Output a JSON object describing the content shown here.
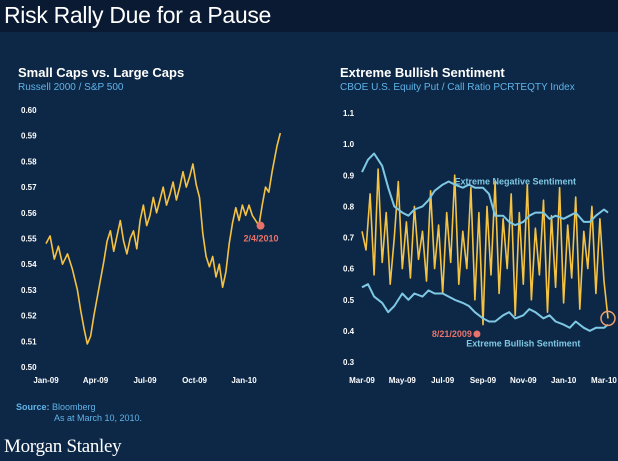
{
  "header": {
    "title": "Risk Rally Due for a Pause"
  },
  "chart_data": [
    {
      "type": "line",
      "title": "Small Caps vs. Large Caps",
      "subtitle": "Russell 2000 / S&P 500",
      "x_tick_labels": [
        "Jan-09",
        "Apr-09",
        "Jul-09",
        "Oct-09",
        "Jan-10"
      ],
      "ylim": [
        0.5,
        0.6
      ],
      "y_tick_labels": [
        "0.60",
        "0.59",
        "0.58",
        "0.57",
        "0.56",
        "0.55",
        "0.54",
        "0.53",
        "0.52",
        "0.51",
        "0.50"
      ],
      "series": [
        {
          "name": "Russell 2000 / S&P 500",
          "color": "#f5c242",
          "x_months": [
            0,
            0.25,
            0.5,
            0.75,
            1.0,
            1.3,
            1.6,
            1.9,
            2.1,
            2.3,
            2.5,
            2.7,
            2.9,
            3.1,
            3.3,
            3.5,
            3.7,
            3.9,
            4.1,
            4.3,
            4.5,
            4.7,
            4.9,
            5.1,
            5.3,
            5.5,
            5.7,
            5.9,
            6.1,
            6.3,
            6.5,
            6.7,
            6.9,
            7.1,
            7.3,
            7.5,
            7.7,
            7.9,
            8.1,
            8.3,
            8.5,
            8.7,
            8.9,
            9.1,
            9.3,
            9.5,
            9.7,
            9.9,
            10.1,
            10.3,
            10.5,
            10.7,
            10.9,
            11.1,
            11.3,
            11.5,
            11.7,
            11.9,
            12.1,
            12.3,
            12.5,
            12.7,
            12.9,
            13.1,
            13.3,
            13.5,
            13.7,
            14.0,
            14.2
          ],
          "values": [
            0.548,
            0.551,
            0.542,
            0.547,
            0.54,
            0.544,
            0.538,
            0.53,
            0.522,
            0.515,
            0.509,
            0.512,
            0.52,
            0.527,
            0.534,
            0.541,
            0.549,
            0.553,
            0.545,
            0.551,
            0.557,
            0.549,
            0.544,
            0.55,
            0.553,
            0.546,
            0.557,
            0.563,
            0.555,
            0.559,
            0.566,
            0.56,
            0.565,
            0.57,
            0.563,
            0.567,
            0.572,
            0.565,
            0.57,
            0.576,
            0.57,
            0.574,
            0.579,
            0.571,
            0.566,
            0.552,
            0.543,
            0.539,
            0.543,
            0.535,
            0.54,
            0.531,
            0.537,
            0.548,
            0.556,
            0.562,
            0.557,
            0.563,
            0.559,
            0.563,
            0.559,
            0.557,
            0.555,
            0.563,
            0.57,
            0.568,
            0.576,
            0.586,
            0.591
          ]
        }
      ],
      "annotations": [
        {
          "label": "2/4/2010",
          "x_month": 13.0,
          "value": 0.555
        }
      ]
    },
    {
      "type": "line",
      "title": "Extreme Bullish Sentiment",
      "subtitle": "CBOE U.S. Equity Put / Call Ratio PCRTEQTY Index",
      "x_tick_labels": [
        "Mar-09",
        "May-09",
        "Jul-09",
        "Sep-09",
        "Nov-09",
        "Jan-10",
        "Mar-10"
      ],
      "ylim": [
        0.3,
        1.1
      ],
      "y_tick_labels": [
        "1.1",
        "1.0",
        "0.9",
        "0.8",
        "0.7",
        "0.6",
        "0.5",
        "0.4",
        "0.3"
      ],
      "series": [
        {
          "name": "Put / Call Ratio",
          "color": "#f5c242",
          "x_months": [
            0,
            0.2,
            0.4,
            0.6,
            0.8,
            1.0,
            1.2,
            1.4,
            1.6,
            1.8,
            2.0,
            2.2,
            2.4,
            2.6,
            2.8,
            3.0,
            3.2,
            3.4,
            3.6,
            3.8,
            4.0,
            4.2,
            4.4,
            4.6,
            4.8,
            5.0,
            5.2,
            5.4,
            5.6,
            5.8,
            6.0,
            6.2,
            6.4,
            6.6,
            6.8,
            7.0,
            7.2,
            7.4,
            7.6,
            7.8,
            8.0,
            8.2,
            8.4,
            8.6,
            8.8,
            9.0,
            9.2,
            9.4,
            9.6,
            9.8,
            10.0,
            10.2,
            10.4,
            10.6,
            10.8,
            11.0,
            11.2,
            11.4,
            11.6,
            11.8,
            12.0,
            12.2
          ],
          "values": [
            0.72,
            0.66,
            0.84,
            0.58,
            0.92,
            0.62,
            0.78,
            0.55,
            0.7,
            0.88,
            0.6,
            0.75,
            0.57,
            0.8,
            0.63,
            0.72,
            0.56,
            0.85,
            0.6,
            0.74,
            0.52,
            0.78,
            0.62,
            0.9,
            0.55,
            0.72,
            0.6,
            0.86,
            0.5,
            0.78,
            0.42,
            0.8,
            0.58,
            0.88,
            0.52,
            0.76,
            0.6,
            0.84,
            0.45,
            0.78,
            0.55,
            0.87,
            0.5,
            0.73,
            0.58,
            0.82,
            0.46,
            0.77,
            0.54,
            0.86,
            0.49,
            0.74,
            0.57,
            0.83,
            0.47,
            0.72,
            0.6,
            0.8,
            0.52,
            0.76,
            0.56,
            0.44
          ]
        },
        {
          "name": "Extreme Negative Sentiment",
          "color": "#7ec8e3",
          "x_months": [
            0,
            0.3,
            0.6,
            1.0,
            1.3,
            1.6,
            2.0,
            2.3,
            2.6,
            3.0,
            3.3,
            3.6,
            4.0,
            4.3,
            4.6,
            5.0,
            5.3,
            5.6,
            6.0,
            6.3,
            6.6,
            7.0,
            7.3,
            7.6,
            8.0,
            8.3,
            8.6,
            9.0,
            9.3,
            9.6,
            10.0,
            10.3,
            10.6,
            11.0,
            11.3,
            11.6,
            12.0,
            12.2
          ],
          "values": [
            0.91,
            0.95,
            0.97,
            0.93,
            0.86,
            0.8,
            0.78,
            0.77,
            0.79,
            0.8,
            0.82,
            0.85,
            0.87,
            0.88,
            0.87,
            0.86,
            0.87,
            0.86,
            0.86,
            0.84,
            0.77,
            0.77,
            0.75,
            0.74,
            0.75,
            0.77,
            0.78,
            0.78,
            0.76,
            0.77,
            0.76,
            0.77,
            0.78,
            0.75,
            0.75,
            0.77,
            0.79,
            0.78
          ]
        },
        {
          "name": "Extreme Bullish Sentiment",
          "color": "#7ec8e3",
          "x_months": [
            0,
            0.3,
            0.6,
            1.0,
            1.3,
            1.6,
            2.0,
            2.3,
            2.6,
            3.0,
            3.3,
            3.6,
            4.0,
            4.3,
            4.6,
            5.0,
            5.3,
            5.6,
            6.0,
            6.3,
            6.6,
            7.0,
            7.3,
            7.6,
            8.0,
            8.3,
            8.6,
            9.0,
            9.3,
            9.6,
            10.0,
            10.3,
            10.6,
            11.0,
            11.3,
            11.6,
            12.0,
            12.2
          ],
          "values": [
            0.54,
            0.55,
            0.51,
            0.49,
            0.46,
            0.48,
            0.52,
            0.5,
            0.52,
            0.51,
            0.53,
            0.52,
            0.52,
            0.51,
            0.5,
            0.49,
            0.48,
            0.46,
            0.44,
            0.43,
            0.43,
            0.45,
            0.46,
            0.44,
            0.45,
            0.47,
            0.46,
            0.44,
            0.45,
            0.43,
            0.42,
            0.41,
            0.43,
            0.41,
            0.4,
            0.41,
            0.41,
            0.42
          ]
        }
      ],
      "annotations": [
        {
          "label": "Extreme Negative Sentiment",
          "x_month": 7.6,
          "value": 0.88
        },
        {
          "label": "Extreme Bullish Sentiment",
          "x_month": 8.0,
          "value": 0.36
        },
        {
          "label": "8/21/2009",
          "x_month": 5.7,
          "value": 0.39
        }
      ]
    }
  ],
  "footer": {
    "source_label": "Source:",
    "source_text": "Bloomberg",
    "date_text": "As at March 10, 2010.",
    "logo": "Morgan Stanley"
  }
}
